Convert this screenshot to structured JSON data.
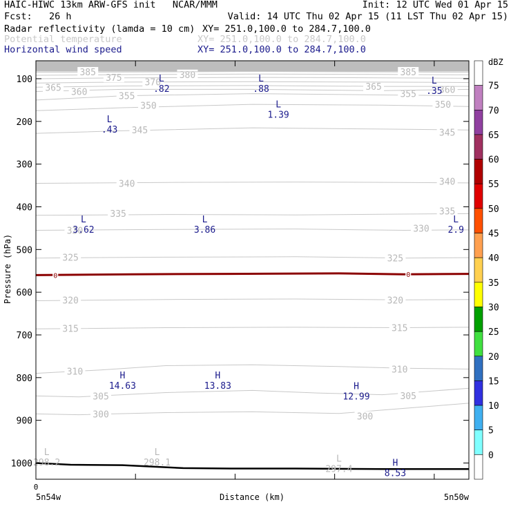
{
  "header": {
    "line1_left": "HAIC-HIWC 13km ARW-GFS init   NCAR/MMM",
    "line1_right": "Init: 12 UTC Wed 01 Apr 15",
    "line2_left": "Fcst:   26 h",
    "line2_right": "Valid: 14 UTC Thu 02 Apr 15 (11 LST Thu 02 Apr 15)",
    "fields": [
      {
        "name": "Radar reflectivity (lamda = 10 cm)",
        "xy": "XY= 251.0,100.0 to 284.7,100.0",
        "color": "#000000"
      },
      {
        "name": "Potential temperature",
        "xy": "XY= 251.0,100.0 to 284.7,100.0",
        "color": "#c8c8c8"
      },
      {
        "name": "Horizontal wind speed",
        "xy": "XY= 251.0,100.0 to 284.7,100.0",
        "color": "#1a1a8c"
      }
    ]
  },
  "chart_data": {
    "type": "cross-section",
    "ylabel": "Pressure (hPa)",
    "xlabel": "Distance (km)",
    "y_ticks": [
      100,
      200,
      300,
      400,
      500,
      600,
      700,
      800,
      900,
      1000
    ],
    "ylim": [
      1038,
      58
    ],
    "xlim": [
      0,
      1
    ],
    "x_ticks": [
      0.0,
      0.23,
      0.46,
      0.69,
      0.92
    ],
    "x_zero_label": "0",
    "x_start_label": "5n54w",
    "x_end_label": "5n50w",
    "isentropes": [
      {
        "theta": 300,
        "points": [
          [
            0,
            885
          ],
          [
            0.1,
            887
          ],
          [
            0.3,
            882
          ],
          [
            0.5,
            880
          ],
          [
            0.7,
            884
          ],
          [
            0.85,
            872
          ],
          [
            1,
            860
          ]
        ],
        "labels": [
          {
            "x": 0.15,
            "p": 885,
            "text": "300"
          },
          {
            "x": 0.76,
            "p": 890,
            "text": "300"
          }
        ]
      },
      {
        "theta": 305,
        "points": [
          [
            0,
            843
          ],
          [
            0.1,
            845
          ],
          [
            0.3,
            835
          ],
          [
            0.5,
            830
          ],
          [
            0.65,
            836
          ],
          [
            0.8,
            840
          ],
          [
            1,
            825
          ]
        ],
        "labels": [
          {
            "x": 0.15,
            "p": 843,
            "text": "305"
          },
          {
            "x": 0.86,
            "p": 842,
            "text": "305"
          }
        ]
      },
      {
        "theta": 310,
        "points": [
          [
            0,
            790
          ],
          [
            0.15,
            782
          ],
          [
            0.3,
            772
          ],
          [
            0.5,
            770
          ],
          [
            0.7,
            774
          ],
          [
            0.85,
            778
          ],
          [
            1,
            780
          ]
        ],
        "labels": [
          {
            "x": 0.09,
            "p": 785,
            "text": "310"
          },
          {
            "x": 0.84,
            "p": 780,
            "text": "310"
          }
        ]
      },
      {
        "theta": 315,
        "points": [
          [
            0,
            686
          ],
          [
            0.3,
            683
          ],
          [
            0.6,
            682
          ],
          [
            0.85,
            683
          ],
          [
            1,
            682
          ]
        ],
        "labels": [
          {
            "x": 0.08,
            "p": 685,
            "text": "315"
          },
          {
            "x": 0.84,
            "p": 683,
            "text": "315"
          }
        ]
      },
      {
        "theta": 320,
        "points": [
          [
            0,
            620
          ],
          [
            0.3,
            617
          ],
          [
            0.6,
            616
          ],
          [
            0.85,
            618
          ],
          [
            1,
            617
          ]
        ],
        "labels": [
          {
            "x": 0.08,
            "p": 618,
            "text": "320"
          },
          {
            "x": 0.83,
            "p": 618,
            "text": "320"
          }
        ]
      },
      {
        "theta": 325,
        "points": [
          [
            0,
            520
          ],
          [
            0.3,
            518
          ],
          [
            0.6,
            517
          ],
          [
            0.85,
            520
          ],
          [
            1,
            519
          ]
        ],
        "labels": [
          {
            "x": 0.08,
            "p": 518,
            "text": "325"
          },
          {
            "x": 0.83,
            "p": 520,
            "text": "325"
          }
        ]
      },
      {
        "theta": 330,
        "points": [
          [
            0,
            455
          ],
          [
            0.3,
            453
          ],
          [
            0.6,
            452
          ],
          [
            0.85,
            455
          ],
          [
            1,
            454
          ]
        ],
        "labels": [
          {
            "x": 0.09,
            "p": 455,
            "text": "330"
          },
          {
            "x": 0.89,
            "p": 450,
            "text": "330"
          }
        ]
      },
      {
        "theta": 335,
        "points": [
          [
            0,
            420
          ],
          [
            0.3,
            418
          ],
          [
            0.6,
            419
          ],
          [
            0.85,
            417
          ],
          [
            1,
            416
          ]
        ],
        "labels": [
          {
            "x": 0.19,
            "p": 415,
            "text": "335"
          },
          {
            "x": 0.95,
            "p": 410,
            "text": "335"
          }
        ]
      },
      {
        "theta": 340,
        "points": [
          [
            0,
            345
          ],
          [
            0.3,
            343
          ],
          [
            0.6,
            342
          ],
          [
            0.85,
            343
          ],
          [
            1,
            344
          ]
        ],
        "labels": [
          {
            "x": 0.21,
            "p": 345,
            "text": "340"
          },
          {
            "x": 0.95,
            "p": 340,
            "text": "340"
          }
        ]
      },
      {
        "theta": 345,
        "points": [
          [
            0,
            228
          ],
          [
            0.2,
            222
          ],
          [
            0.5,
            215
          ],
          [
            0.8,
            218
          ],
          [
            1,
            220
          ]
        ],
        "labels": [
          {
            "x": 0.24,
            "p": 220,
            "text": "345"
          },
          {
            "x": 0.95,
            "p": 225,
            "text": "345"
          }
        ]
      },
      {
        "theta": 350,
        "points": [
          [
            0,
            175
          ],
          [
            0.2,
            168
          ],
          [
            0.5,
            160
          ],
          [
            0.8,
            162
          ],
          [
            1,
            165
          ]
        ],
        "labels": [
          {
            "x": 0.26,
            "p": 162,
            "text": "350"
          },
          {
            "x": 0.94,
            "p": 160,
            "text": "350"
          }
        ]
      },
      {
        "theta": 355,
        "points": [
          [
            0,
            150
          ],
          [
            0.2,
            140
          ],
          [
            0.5,
            135
          ],
          [
            0.8,
            138
          ],
          [
            1,
            140
          ]
        ],
        "labels": [
          {
            "x": 0.21,
            "p": 140,
            "text": "355"
          },
          {
            "x": 0.86,
            "p": 135,
            "text": "355"
          }
        ]
      },
      {
        "theta": 360,
        "points": [
          [
            0,
            130
          ],
          [
            0.2,
            125
          ],
          [
            0.5,
            125
          ],
          [
            0.8,
            128
          ],
          [
            1,
            125
          ]
        ],
        "labels": [
          {
            "x": 0.1,
            "p": 130,
            "text": "360"
          },
          {
            "x": 0.95,
            "p": 125,
            "text": "360"
          }
        ]
      },
      {
        "theta": 365,
        "points": [
          [
            0,
            120
          ],
          [
            0.2,
            117
          ],
          [
            0.5,
            116
          ],
          [
            0.8,
            118
          ],
          [
            1,
            118
          ]
        ],
        "labels": [
          {
            "x": 0.04,
            "p": 120,
            "text": "365"
          },
          {
            "x": 0.78,
            "p": 118,
            "text": "365"
          }
        ]
      },
      {
        "theta": 370,
        "points": [
          [
            0,
            110
          ],
          [
            0.2,
            108
          ],
          [
            0.5,
            107
          ],
          [
            0.8,
            108
          ],
          [
            1,
            109
          ]
        ],
        "labels": [
          {
            "x": 0.27,
            "p": 107,
            "text": "370"
          }
        ]
      },
      {
        "theta": 375,
        "points": [
          [
            0,
            100
          ],
          [
            0.2,
            98
          ],
          [
            0.5,
            97
          ],
          [
            0.8,
            98
          ],
          [
            1,
            99
          ]
        ],
        "labels": [
          {
            "x": 0.18,
            "p": 97,
            "text": "375"
          }
        ]
      },
      {
        "theta": 380,
        "points": [
          [
            0,
            92
          ],
          [
            0.3,
            90
          ],
          [
            0.5,
            89
          ],
          [
            0.8,
            90
          ],
          [
            1,
            91
          ]
        ],
        "labels": [
          {
            "x": 0.35,
            "p": 90,
            "text": "380"
          }
        ]
      },
      {
        "theta": 385,
        "points": [
          [
            0,
            85
          ],
          [
            0.3,
            84
          ],
          [
            0.5,
            83
          ],
          [
            0.8,
            84
          ],
          [
            1,
            85
          ]
        ],
        "labels": [
          {
            "x": 0.12,
            "p": 84,
            "text": "385"
          },
          {
            "x": 0.86,
            "p": 84,
            "text": "385"
          }
        ]
      }
    ],
    "freezing_line": {
      "label": "0",
      "color": "#8b0000",
      "points": [
        [
          0,
          560
        ],
        [
          0.22,
          558
        ],
        [
          0.45,
          557
        ],
        [
          0.7,
          556
        ],
        [
          0.85,
          558
        ],
        [
          1,
          557
        ]
      ],
      "labels": [
        {
          "x": 0.045,
          "p": 560
        },
        {
          "x": 0.86,
          "p": 558
        }
      ]
    },
    "terrain": [
      [
        0,
        1000
      ],
      [
        0.08,
        1004
      ],
      [
        0.2,
        1005
      ],
      [
        0.34,
        1012
      ],
      [
        0.45,
        1013
      ],
      [
        0.6,
        1013
      ],
      [
        0.8,
        1014
      ],
      [
        1,
        1014
      ]
    ],
    "wind_extrema": [
      {
        "type": "L",
        "value": ".82",
        "x": 0.29,
        "p": 110
      },
      {
        "type": "L",
        "value": ".88",
        "x": 0.52,
        "p": 110
      },
      {
        "type": "L",
        "value": ".35",
        "x": 0.92,
        "p": 115
      },
      {
        "type": "L",
        "value": "1.39",
        "x": 0.56,
        "p": 170
      },
      {
        "type": "L",
        "value": ".43",
        "x": 0.17,
        "p": 205
      },
      {
        "type": "L",
        "value": "3.62",
        "x": 0.11,
        "p": 440
      },
      {
        "type": "L",
        "value": "3.86",
        "x": 0.39,
        "p": 440
      },
      {
        "type": "L",
        "value": "2.9",
        "x": 0.97,
        "p": 440
      },
      {
        "type": "H",
        "value": "14.63",
        "x": 0.2,
        "p": 805
      },
      {
        "type": "H",
        "value": "13.83",
        "x": 0.42,
        "p": 805
      },
      {
        "type": "H",
        "value": "12.99",
        "x": 0.74,
        "p": 830
      },
      {
        "type": "H",
        "value": "8.53",
        "x": 0.83,
        "p": 1010
      }
    ],
    "theta_extrema": [
      {
        "type": "L",
        "value": "298.2",
        "x": 0.025,
        "p": 985
      },
      {
        "type": "L",
        "value": "298.1",
        "x": 0.28,
        "p": 985
      },
      {
        "type": "L",
        "value": "297.4",
        "x": 0.7,
        "p": 1000
      }
    ],
    "colorbar": {
      "unit": "dBZ",
      "labels": [
        "75",
        "70",
        "65",
        "60",
        "55",
        "50",
        "45",
        "40",
        "35",
        "30",
        "25",
        "20",
        "15",
        "10",
        "5",
        "0"
      ],
      "colors": [
        "#ffffff",
        "#c080c0",
        "#9040a0",
        "#a03060",
        "#b00000",
        "#e00000",
        "#ff5000",
        "#ffa050",
        "#ffd050",
        "#ffff00",
        "#00a000",
        "#40e040",
        "#3070c0",
        "#3030e0",
        "#40b0f0",
        "#80ffff",
        "#ffffff"
      ]
    }
  }
}
